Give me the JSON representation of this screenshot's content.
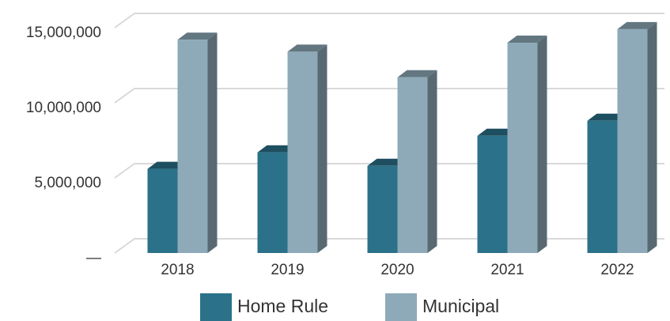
{
  "chart_data": {
    "type": "bar3d",
    "categories": [
      "2018",
      "2019",
      "2020",
      "2021",
      "2022"
    ],
    "series": [
      {
        "name": "Home Rule",
        "color": "#2a7189",
        "values": [
          5600000,
          6700000,
          5800000,
          7800000,
          8800000
        ]
      },
      {
        "name": "Municipal",
        "color": "#8eaab8",
        "values": [
          14200000,
          13400000,
          11700000,
          14000000,
          14900000
        ]
      }
    ],
    "ylim": [
      0,
      15000000
    ],
    "yticks": [
      {
        "value": 0,
        "label": "—"
      },
      {
        "value": 5000000,
        "label": "5,000,000"
      },
      {
        "value": 10000000,
        "label": "10,000,000"
      },
      {
        "value": 15000000,
        "label": "15,000,000"
      }
    ],
    "grid": true,
    "legend": "bottom"
  }
}
